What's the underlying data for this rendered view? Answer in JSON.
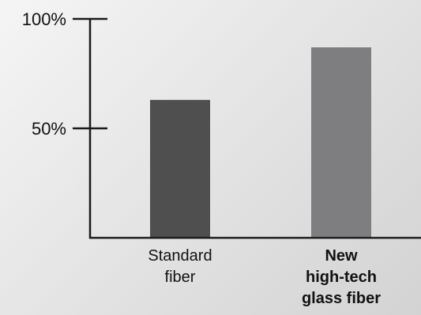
{
  "chart_data": {
    "type": "bar",
    "categories": [
      "Standard fiber",
      "New high-tech glass fiber"
    ],
    "category_label_lines": [
      [
        "Standard",
        "fiber"
      ],
      [
        "New",
        "high-tech",
        "glass fiber"
      ]
    ],
    "category_label_bold": [
      false,
      true
    ],
    "values": [
      63,
      87
    ],
    "unit": "%",
    "ylim": [
      0,
      100
    ],
    "y_ticks": [
      {
        "value": 50,
        "label": "50%"
      },
      {
        "value": 100,
        "label": "100%"
      }
    ],
    "colors": [
      "#4f4f4f",
      "#7e7e80"
    ],
    "axis_color": "#1a1a1a",
    "title": "",
    "xlabel": "",
    "ylabel": "",
    "grid": false,
    "legend": "none"
  }
}
